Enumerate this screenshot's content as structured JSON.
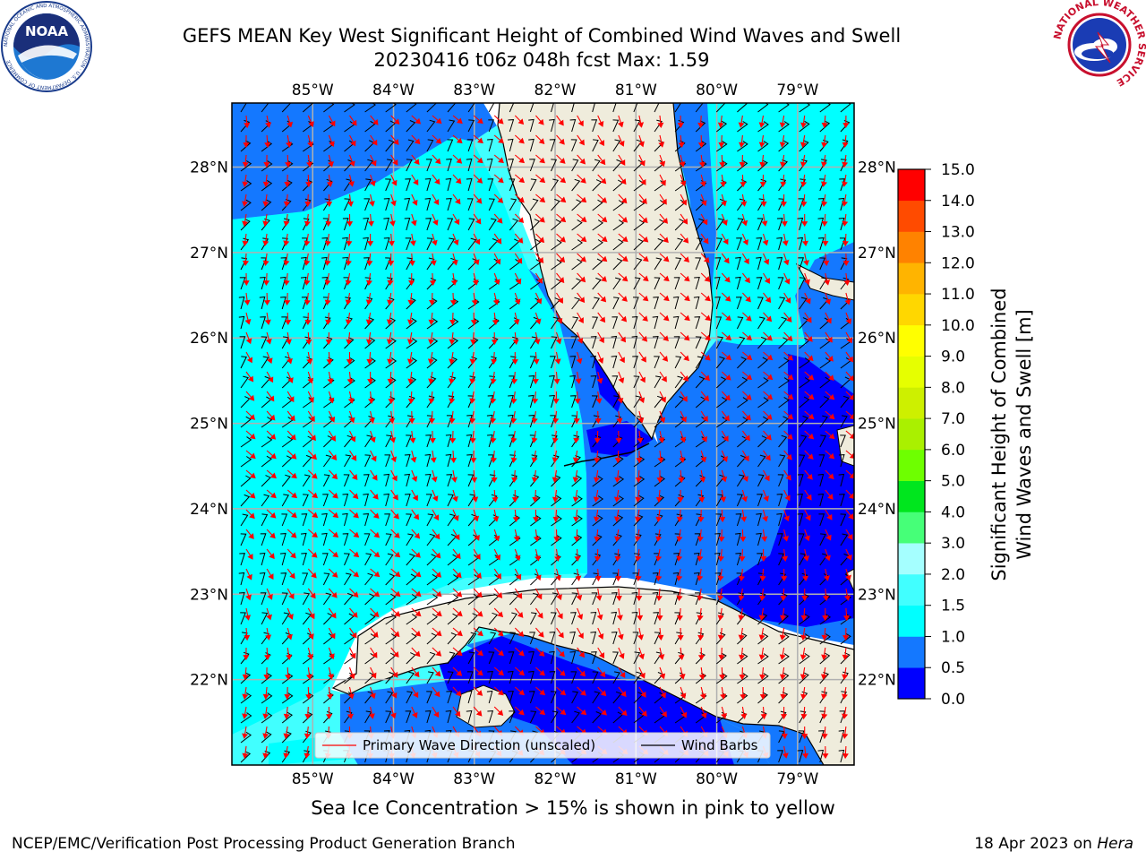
{
  "header": {
    "title_line1": "GEFS MEAN Key West Significant Height of Combined Wind Waves and Swell",
    "title_line2": "20230416 t06z 048h fcst   Max: 1.59"
  },
  "logos": {
    "noaa_text": "NOAA",
    "noaa_ring_text": "NATIONAL OCEANIC AND ATMOSPHERIC ADMINISTRATION · U.S. DEPARTMENT OF COMMERCE",
    "nws_ring_text": "NATIONAL WEATHER SERVICE"
  },
  "map": {
    "lon_labels": [
      "85°W",
      "84°W",
      "83°W",
      "82°W",
      "81°W",
      "80°W",
      "79°W"
    ],
    "lat_labels": [
      "28°N",
      "27°N",
      "26°N",
      "25°N",
      "24°N",
      "23°N",
      "22°N"
    ],
    "lon_values": [
      -85,
      -84,
      -83,
      -82,
      -81,
      -80,
      -79
    ],
    "lat_values": [
      28,
      27,
      26,
      25,
      24,
      23,
      22
    ],
    "extent": {
      "lon": [
        -86,
        -78.3
      ],
      "lat": [
        21,
        28.75
      ]
    },
    "colors": {
      "land": "#efecdc",
      "ocean_0_05": "#0000ff",
      "ocean_05_1": "#1478ff",
      "ocean_1_15": "#00ffff",
      "ocean_15_2": "#41ffff",
      "wave_dir": "#ff0000",
      "barb": "#000000"
    }
  },
  "legend": {
    "wave_direction": "Primary Wave Direction (unscaled)",
    "wind_barbs": "Wind Barbs"
  },
  "colorbar": {
    "label_line1": "Significant Height of Combined",
    "label_line2": "Wind Waves and Swell [m]",
    "ticks": [
      "0.0",
      "0.5",
      "1.0",
      "1.5",
      "2.0",
      "3.0",
      "4.0",
      "5.0",
      "6.0",
      "7.0",
      "8.0",
      "9.0",
      "10.0",
      "11.0",
      "12.0",
      "13.0",
      "14.0",
      "15.0"
    ],
    "colors": [
      "#0000ff",
      "#1478ff",
      "#00ffff",
      "#41ffff",
      "#a5ffff",
      "#46ff78",
      "#00e61e",
      "#6eff00",
      "#aaf000",
      "#cdf000",
      "#e6ff00",
      "#ffff00",
      "#ffd700",
      "#ffb400",
      "#ff8200",
      "#ff4b00",
      "#ff0000"
    ]
  },
  "footer": {
    "note": "Sea Ice Concentration > 15% is shown in pink to yellow",
    "left": "NCEP/EMC/Verification Post Processing Product Generation Branch",
    "date": "18 Apr 2023 on ",
    "host": "Hera"
  }
}
